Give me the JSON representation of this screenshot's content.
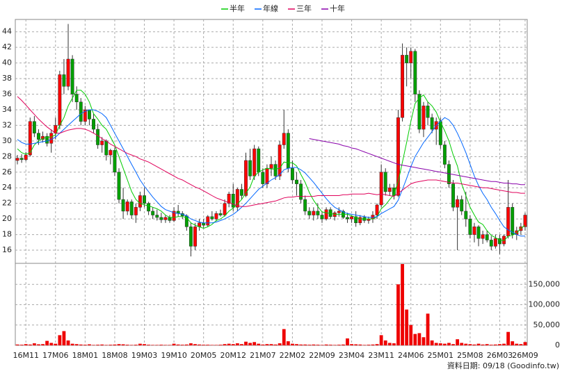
{
  "chart_data": {
    "type": "candlestick",
    "categories": [
      null,
      null,
      "16M11",
      null,
      null,
      null,
      null,
      null,
      null,
      "17M06",
      null,
      null,
      null,
      null,
      null,
      null,
      "18M01",
      null,
      null,
      null,
      null,
      null,
      null,
      "18M08",
      null,
      null,
      null,
      null,
      null,
      null,
      "19M03",
      null,
      null,
      null,
      null,
      null,
      null,
      "19M10",
      null,
      null,
      null,
      null,
      null,
      null,
      "20M05",
      null,
      null,
      null,
      null,
      null,
      null,
      "20M12",
      null,
      null,
      null,
      null,
      null,
      null,
      "21M07",
      null,
      null,
      null,
      null,
      null,
      null,
      "22M02",
      null,
      null,
      null,
      null,
      null,
      null,
      "22M09",
      null,
      null,
      null,
      null,
      null,
      null,
      "23M04",
      null,
      null,
      null,
      null,
      null,
      null,
      "23M11",
      null,
      null,
      null,
      null,
      null,
      null,
      "24M06",
      null,
      null,
      null,
      null,
      null,
      null,
      "25M01",
      null,
      null,
      null,
      null,
      null,
      null,
      "25M08",
      null,
      null,
      null,
      null,
      null,
      null,
      "26M03",
      null,
      null,
      null,
      null,
      null,
      "26M09"
    ],
    "open": [
      27.5,
      27.8,
      27.6,
      28.2,
      32.5,
      31.0,
      30.2,
      30.6,
      29.7,
      31.0,
      32.0,
      38.5,
      37.0,
      40.5,
      36.0,
      35.0,
      32.5,
      34.0,
      32.8,
      31.5,
      29.5,
      30.0,
      28.2,
      28.8,
      26.0,
      22.5,
      21.0,
      22.2,
      20.5,
      21.5,
      23.0,
      22.0,
      21.0,
      20.5,
      20.2,
      19.9,
      20.2,
      19.8,
      21.0,
      20.7,
      20.4,
      19.0,
      16.5,
      19.0,
      19.5,
      19.2,
      20.3,
      20.0,
      20.7,
      20.5,
      22.0,
      23.2,
      21.5,
      23.8,
      23.0,
      27.5,
      25.5,
      29.0,
      26.0,
      24.5,
      26.5,
      27.0,
      25.5,
      29.5,
      31.0,
      26.5,
      25.0,
      24.5,
      22.5,
      21.0,
      20.5,
      21.0,
      20.5,
      20.0,
      21.2,
      20.3,
      20.8,
      21.0,
      20.2,
      20.0,
      20.3,
      19.5,
      20.2,
      19.8,
      20.0,
      20.5,
      21.8,
      26.0,
      23.5,
      24.0,
      23.0,
      33.0,
      41.0,
      40.0,
      41.5,
      36.0,
      31.5,
      34.5,
      33.0,
      31.5,
      32.5,
      29.5,
      27.0,
      24.5,
      21.5,
      22.5,
      21.0,
      20.0,
      18.0,
      19.0,
      17.5,
      18.0,
      17.3,
      16.5,
      17.5,
      16.8,
      17.8,
      21.5,
      18.0,
      18.5,
      19.0
    ],
    "high": [
      28.2,
      28.3,
      28.6,
      33.0,
      33.2,
      31.5,
      31.2,
      31.0,
      31.5,
      33.0,
      39.0,
      40.5,
      45.0,
      41.0,
      37.0,
      35.5,
      34.5,
      34.0,
      33.5,
      32.2,
      30.5,
      30.2,
      29.0,
      29.2,
      26.5,
      24.0,
      22.5,
      22.5,
      22.0,
      23.5,
      24.0,
      22.2,
      21.5,
      21.2,
      20.8,
      20.5,
      20.5,
      21.5,
      21.8,
      21.0,
      20.6,
      19.5,
      19.5,
      20.0,
      20.0,
      20.5,
      21.0,
      21.0,
      21.2,
      22.5,
      23.5,
      24.5,
      24.0,
      24.5,
      28.5,
      29.0,
      29.5,
      29.3,
      26.5,
      27.0,
      28.0,
      27.5,
      30.0,
      34.0,
      31.5,
      27.5,
      26.0,
      25.0,
      23.0,
      21.5,
      21.5,
      22.0,
      21.0,
      21.5,
      21.5,
      21.0,
      21.5,
      21.2,
      20.8,
      20.5,
      21.0,
      20.5,
      20.5,
      20.3,
      21.0,
      22.0,
      27.0,
      26.5,
      24.5,
      24.5,
      34.0,
      42.5,
      42.0,
      42.0,
      41.8,
      36.5,
      35.0,
      35.0,
      33.5,
      33.0,
      33.0,
      30.0,
      27.5,
      25.0,
      23.0,
      23.0,
      23.5,
      20.5,
      19.5,
      19.2,
      18.5,
      18.5,
      17.8,
      18.0,
      18.0,
      18.0,
      25.0,
      22.0,
      19.0,
      19.5,
      20.8
    ],
    "low": [
      27.0,
      27.2,
      27.4,
      28.0,
      30.5,
      29.5,
      29.8,
      29.3,
      28.5,
      30.2,
      31.5,
      36.0,
      36.5,
      35.0,
      34.0,
      32.0,
      32.0,
      32.0,
      31.0,
      29.0,
      28.5,
      27.5,
      27.0,
      25.5,
      22.0,
      20.0,
      20.5,
      20.0,
      19.5,
      21.0,
      21.5,
      20.5,
      20.0,
      19.8,
      19.5,
      19.5,
      19.5,
      19.6,
      20.3,
      20.0,
      18.5,
      15.2,
      16.0,
      18.5,
      18.8,
      19.0,
      19.8,
      19.7,
      20.3,
      20.3,
      21.5,
      21.0,
      21.0,
      22.5,
      22.8,
      25.0,
      25.0,
      25.5,
      24.0,
      24.0,
      25.5,
      25.0,
      25.0,
      29.0,
      26.0,
      24.5,
      23.0,
      22.0,
      20.5,
      20.0,
      19.8,
      20.0,
      19.5,
      19.8,
      20.0,
      19.8,
      20.3,
      20.0,
      19.5,
      19.5,
      19.0,
      19.2,
      19.5,
      19.4,
      19.5,
      20.0,
      21.5,
      23.0,
      23.0,
      22.5,
      22.8,
      32.5,
      37.0,
      38.0,
      35.0,
      31.0,
      30.5,
      32.0,
      31.0,
      29.5,
      29.0,
      26.5,
      24.0,
      21.0,
      16.0,
      20.5,
      19.0,
      17.5,
      17.0,
      16.5,
      16.8,
      17.0,
      16.0,
      16.2,
      15.5,
      16.5,
      17.5,
      17.5,
      17.3,
      18.0,
      18.5
    ],
    "close": [
      27.8,
      27.6,
      28.2,
      32.5,
      31.0,
      30.2,
      30.6,
      29.7,
      31.0,
      32.0,
      38.5,
      37.0,
      40.5,
      36.0,
      35.0,
      32.5,
      34.0,
      32.8,
      31.5,
      29.5,
      30.0,
      28.2,
      28.8,
      26.0,
      22.5,
      21.0,
      22.2,
      20.5,
      21.5,
      23.0,
      22.0,
      21.0,
      20.5,
      20.2,
      19.9,
      20.2,
      19.8,
      21.0,
      20.7,
      20.4,
      19.0,
      16.5,
      19.0,
      19.5,
      19.2,
      20.3,
      20.0,
      20.7,
      20.5,
      22.0,
      23.2,
      21.5,
      23.8,
      23.0,
      27.5,
      25.5,
      29.0,
      26.0,
      24.5,
      26.5,
      27.0,
      25.5,
      29.5,
      31.0,
      26.5,
      25.0,
      24.5,
      22.5,
      21.0,
      20.5,
      21.0,
      20.5,
      20.0,
      21.2,
      20.3,
      20.8,
      21.0,
      20.2,
      20.0,
      20.3,
      19.5,
      20.2,
      19.8,
      20.0,
      20.5,
      21.8,
      26.0,
      23.5,
      24.0,
      23.0,
      33.0,
      41.0,
      40.0,
      41.5,
      36.0,
      31.5,
      34.5,
      33.0,
      31.5,
      32.5,
      29.5,
      27.0,
      24.5,
      21.5,
      22.5,
      21.0,
      20.0,
      18.0,
      19.0,
      17.5,
      18.0,
      17.3,
      16.5,
      17.5,
      16.8,
      17.8,
      21.5,
      18.0,
      18.5,
      19.0,
      20.5
    ],
    "up_color": "#ff0000",
    "down_color": "#00a000",
    "series": [
      {
        "name": "半年",
        "color": "#00cc00",
        "values": [
          29,
          28.5,
          28.3,
          28.5,
          29.5,
          30,
          30.3,
          30.5,
          30.5,
          30.8,
          32,
          33,
          34.5,
          35.5,
          36.5,
          36.5,
          36,
          35,
          33.5,
          32.8,
          32,
          31.5,
          30.5,
          29.5,
          28,
          26.5,
          25,
          23.5,
          22.5,
          22,
          21.8,
          21.7,
          21.5,
          21.3,
          21,
          20.5,
          20.2,
          20.2,
          20.3,
          20.3,
          20.2,
          19.5,
          19.2,
          19,
          18.8,
          19,
          19.3,
          19.8,
          20,
          20.4,
          21,
          21.4,
          21.9,
          22.5,
          23.3,
          24.1,
          25.5,
          26,
          26.3,
          26.5,
          26.4,
          26.4,
          26.5,
          27.3,
          27.2,
          27.2,
          26.8,
          25.7,
          24.7,
          23.4,
          22.4,
          21.6,
          20.9,
          20.8,
          20.7,
          20.6,
          20.6,
          20.6,
          20.6,
          20.4,
          20.2,
          20,
          20,
          20,
          20,
          20.3,
          21.3,
          21.8,
          22.5,
          23.1,
          24.8,
          27.3,
          29.8,
          32.5,
          34.8,
          35.5,
          35.9,
          35,
          34.5,
          33.7,
          32.4,
          31.3,
          30,
          28.2,
          26.8,
          24.5,
          23,
          21.5,
          20.5,
          19.6,
          19.3,
          18.5,
          17.9,
          17.6,
          17.3,
          17.2,
          17.8,
          17.9,
          18.2,
          18.8,
          19.2
        ]
      },
      {
        "name": "年線",
        "color": "#0066ff",
        "values": [
          30.2,
          29.8,
          29.6,
          29.6,
          29.7,
          29.8,
          29.9,
          30,
          30.2,
          30.5,
          31,
          31.5,
          32,
          32.5,
          33,
          33.5,
          33.8,
          34,
          34,
          33.8,
          33.5,
          33,
          32,
          31,
          30,
          29,
          28,
          27,
          26,
          25,
          24.2,
          23.5,
          22.8,
          22.2,
          21.6,
          21.2,
          21,
          20.8,
          20.7,
          20.6,
          20.4,
          20,
          19.8,
          19.6,
          19.5,
          19.5,
          19.5,
          19.6,
          19.8,
          20,
          20.3,
          20.6,
          21,
          21.5,
          22,
          22.6,
          23.2,
          23.8,
          24.2,
          24.6,
          25,
          25.3,
          25.7,
          26.3,
          26.5,
          26.6,
          26.6,
          26.3,
          25.9,
          25.3,
          24.7,
          24,
          23.3,
          22.6,
          22,
          21.5,
          21.2,
          20.9,
          20.7,
          20.6,
          20.5,
          20.4,
          20.3,
          20.2,
          20.2,
          20.3,
          20.7,
          21,
          21.3,
          21.6,
          22.4,
          23.8,
          25.2,
          26.7,
          28,
          28.9,
          29.8,
          30.5,
          31.2,
          32,
          32.5,
          33,
          32.7,
          32,
          31,
          29.8,
          28.5,
          27,
          25.5,
          24.3,
          23.3,
          22.5,
          21.5,
          20.7,
          19.8,
          19,
          18.6,
          18.3,
          18,
          17.8,
          17.8
        ]
      },
      {
        "name": "三年",
        "color": "#e0005a",
        "values": [
          35.7,
          35.2,
          34.6,
          34,
          33.4,
          32.8,
          32.3,
          31.8,
          31.4,
          31,
          31,
          31.2,
          31.4,
          31.5,
          31.6,
          31.6,
          31.5,
          31.3,
          31,
          30.7,
          30.3,
          30,
          29.6,
          29.3,
          29,
          28.7,
          28.4,
          28.2,
          28,
          27.7,
          27.5,
          27.3,
          27,
          26.7,
          26.4,
          26.1,
          25.8,
          25.5,
          25.2,
          25,
          24.7,
          24.4,
          24.1,
          23.9,
          23.6,
          23.3,
          23,
          22.7,
          22.5,
          22.3,
          22.1,
          21.9,
          21.7,
          21.6,
          21.6,
          21.7,
          21.8,
          21.9,
          22,
          22.1,
          22.2,
          22.3,
          22.5,
          22.7,
          22.8,
          22.8,
          22.9,
          22.9,
          22.9,
          22.9,
          22.9,
          23,
          23,
          23,
          23,
          23,
          23,
          23.1,
          23.1,
          23.2,
          23.2,
          23.2,
          23.2,
          23.3,
          23.2,
          23.1,
          23.2,
          23.1,
          23,
          22.9,
          23.3,
          23.7,
          24.1,
          24.5,
          24.7,
          24.8,
          24.9,
          25,
          25,
          25,
          24.9,
          24.8,
          24.7,
          24.6,
          24.6,
          24.5,
          24.4,
          24.3,
          24.2,
          24.1,
          24,
          24,
          23.9,
          23.8,
          23.7,
          23.6,
          23.5,
          23.4,
          23.4,
          23.3,
          23.3
        ]
      },
      {
        "name": "十年",
        "color": "#8800aa",
        "values": [
          null,
          null,
          null,
          null,
          null,
          null,
          null,
          null,
          null,
          null,
          null,
          null,
          null,
          null,
          null,
          null,
          null,
          null,
          null,
          null,
          null,
          null,
          null,
          null,
          null,
          null,
          null,
          null,
          null,
          null,
          null,
          null,
          null,
          null,
          null,
          null,
          null,
          null,
          null,
          null,
          null,
          null,
          null,
          null,
          null,
          null,
          null,
          null,
          null,
          null,
          null,
          null,
          null,
          null,
          null,
          null,
          null,
          null,
          null,
          null,
          null,
          null,
          null,
          null,
          null,
          null,
          null,
          null,
          null,
          30.3,
          30.2,
          30.1,
          30,
          29.9,
          29.8,
          29.7,
          29.6,
          29.4,
          29.3,
          29.1,
          29,
          28.8,
          28.6,
          28.4,
          28.2,
          28,
          27.8,
          27.6,
          27.4,
          27.2,
          27,
          26.9,
          26.8,
          26.7,
          26.6,
          26.5,
          26.4,
          26.3,
          26.2,
          26.1,
          26,
          25.9,
          25.8,
          25.7,
          25.6,
          25.5,
          25.4,
          25.3,
          25.2,
          25.1,
          25,
          24.9,
          24.8,
          24.8,
          24.7,
          24.6,
          24.6,
          24.5,
          24.5,
          24.4,
          24.4
        ]
      }
    ],
    "volume": {
      "axis": "y2",
      "color": "#ee0000",
      "values": [
        2000,
        1500,
        3000,
        2000,
        5000,
        2500,
        3000,
        11000,
        6000,
        4000,
        25000,
        35000,
        12000,
        4000,
        3000,
        2000,
        1500,
        2500,
        1000,
        1500,
        2000,
        1000,
        1500,
        2000,
        3000,
        2500,
        1500,
        1000,
        1500,
        4000,
        3000,
        1500,
        1000,
        1000,
        1500,
        1000,
        1000,
        4000,
        2000,
        1500,
        2000,
        5000,
        3000,
        2000,
        1500,
        1500,
        1000,
        1000,
        1500,
        3000,
        4000,
        3000,
        5000,
        3000,
        9000,
        6000,
        8000,
        4000,
        2000,
        3000,
        3000,
        2000,
        5000,
        40000,
        10000,
        4000,
        3000,
        2000,
        2000,
        1500,
        2000,
        1500,
        1000,
        2000,
        1500,
        1000,
        1500,
        2000,
        17000,
        3000,
        2500,
        2000,
        1000,
        1500,
        2000,
        3000,
        25000,
        12000,
        6000,
        5000,
        150000,
        200000,
        88000,
        50000,
        28000,
        30000,
        20000,
        78000,
        12000,
        6000,
        5000,
        4000,
        6000,
        3000,
        15000,
        6000,
        4000,
        3000,
        2000,
        4000,
        2000,
        3000,
        1500,
        2000,
        3000,
        4000,
        33000,
        10000,
        4000,
        3000,
        8000
      ]
    },
    "ylim": [
      14.4,
      45.4
    ],
    "yticks": [
      16,
      18,
      20,
      22,
      24,
      26,
      28,
      30,
      32,
      34,
      36,
      38,
      40,
      42,
      44
    ],
    "y2lim": [
      0,
      200000
    ],
    "y2ticks": [
      0,
      {
        "value": 50000,
        "label": "50,000"
      },
      {
        "value": 100000,
        "label": "100,000"
      },
      {
        "value": 150000,
        "label": "150,000"
      }
    ],
    "grid": true,
    "footer": "資料日期: 09/18 (Goodinfo.tw)"
  }
}
